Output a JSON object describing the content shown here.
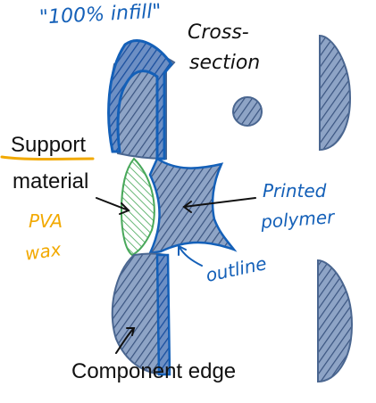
{
  "labels": {
    "infill": "\"100% infill\"",
    "cross_section_1": "Cross-",
    "cross_section_2": "section",
    "support_1": "Support",
    "support_2": "material",
    "pva": "PVA",
    "wax": "wax",
    "printed_1": "Printed",
    "printed_2": "polymer",
    "outline": "outline",
    "component_edge": "Component edge"
  },
  "colors": {
    "blue_ink": "#1460b8",
    "orange_ink": "#f2a900",
    "green_ink": "#48a85a",
    "part_fill": "#8ea4c6",
    "part_stroke": "#4a6690",
    "hatch": "#3a5480",
    "text": "#111111"
  }
}
